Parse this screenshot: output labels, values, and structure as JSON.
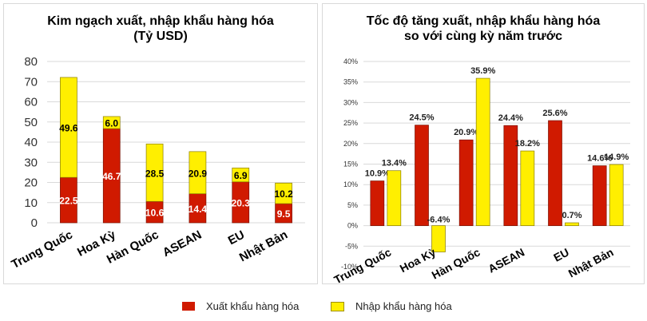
{
  "chart_data": [
    {
      "type": "bar",
      "stacked": true,
      "title": "Kim ngạch xuất, nhập khẩu hàng hóa",
      "subtitle": "(Tỷ USD)",
      "categories": [
        "Trung Quốc",
        "Hoa Kỳ",
        "Hàn Quốc",
        "ASEAN",
        "EU",
        "Nhật Bản"
      ],
      "series": [
        {
          "name": "Xuất khẩu hàng hóa",
          "color": "#d01a00",
          "values": [
            22.5,
            46.7,
            10.6,
            14.4,
            20.3,
            9.5
          ],
          "labels": [
            "22.5",
            "46.7",
            "10.6",
            "14.4",
            "20.3",
            "9.5"
          ]
        },
        {
          "name": "Nhập khẩu hàng hóa",
          "color": "#ffef00",
          "values": [
            49.6,
            6.0,
            28.5,
            20.9,
            6.9,
            10.2
          ],
          "labels": [
            "49.6",
            "6.0",
            "28.5",
            "20.9",
            "6.9",
            "10.2"
          ]
        }
      ],
      "xlabel": "",
      "ylabel": "",
      "ylim": [
        0,
        80
      ],
      "yticks": [
        "0",
        "10",
        "20",
        "30",
        "40",
        "50",
        "60",
        "70",
        "80"
      ],
      "grid": true
    },
    {
      "type": "bar",
      "stacked": false,
      "title": "Tốc độ tăng xuất, nhập khẩu hàng hóa",
      "subtitle": "so với cùng kỳ năm trước",
      "categories": [
        "Trung Quốc",
        "Hoa Kỳ",
        "Hàn Quốc",
        "ASEAN",
        "EU",
        "Nhật Bản"
      ],
      "series": [
        {
          "name": "Xuất khẩu hàng hóa",
          "color": "#d01a00",
          "values": [
            10.9,
            24.5,
            20.9,
            24.4,
            25.6,
            14.6
          ],
          "labels": [
            "10.9%",
            "24.5%",
            "20.9%",
            "24.4%",
            "25.6%",
            "14.6%"
          ]
        },
        {
          "name": "Nhập khẩu hàng hóa",
          "color": "#ffef00",
          "values": [
            13.4,
            -6.4,
            35.9,
            18.2,
            0.7,
            14.9
          ],
          "labels": [
            "13.4%",
            "-6.4%",
            "35.9%",
            "18.2%",
            "0.7%",
            "14.9%"
          ]
        }
      ],
      "xlabel": "",
      "ylabel": "",
      "ylim": [
        -10,
        40
      ],
      "yticks": [
        "-10%",
        "-5%",
        "0%",
        "5%",
        "10%",
        "15%",
        "20%",
        "25%",
        "30%",
        "35%",
        "40%"
      ],
      "grid": true
    }
  ],
  "legend": {
    "position": "bottom",
    "items": [
      {
        "label": "Xuất khẩu hàng hóa",
        "color": "#d01a00"
      },
      {
        "label": "Nhập khẩu hàng hóa",
        "color": "#ffef00"
      }
    ]
  }
}
